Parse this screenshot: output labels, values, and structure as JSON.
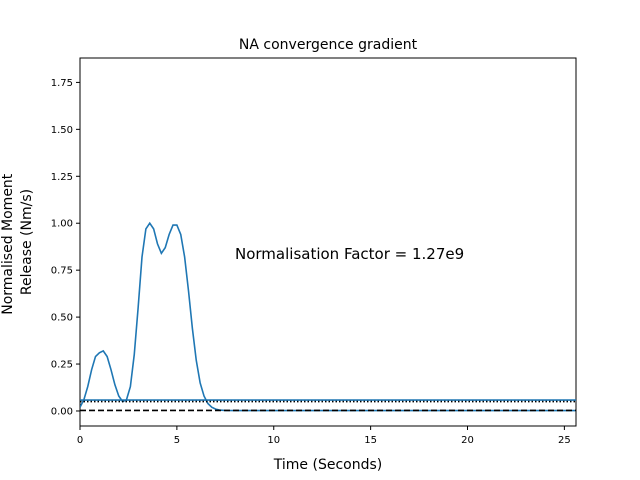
{
  "chart_data": {
    "type": "line",
    "title": "NA convergence gradient",
    "xlabel": "Time (Seconds)",
    "ylabel_lines": [
      "Normalised Moment",
      "Release (Nm/s)"
    ],
    "xlim": [
      0,
      25.6
    ],
    "ylim": [
      -0.08,
      1.88
    ],
    "x_ticks": [
      0,
      5,
      10,
      15,
      20,
      25
    ],
    "y_ticks": [
      0.0,
      0.25,
      0.5,
      0.75,
      1.0,
      1.25,
      1.5,
      1.75
    ],
    "annotation": {
      "text": "Normalisation Factor = 1.27e9",
      "x": 8.0,
      "y": 0.81
    },
    "grid": false,
    "series": [
      {
        "style": "solid",
        "color": "#1f77b4",
        "x": [
          0,
          0.2,
          0.4,
          0.6,
          0.8,
          1.0,
          1.2,
          1.4,
          1.6,
          1.8,
          2.0,
          2.2,
          2.4,
          2.6,
          2.8,
          3.0,
          3.2,
          3.4,
          3.6,
          3.8,
          4.0,
          4.2,
          4.4,
          4.6,
          4.8,
          5.0,
          5.2,
          5.4,
          5.6,
          5.8,
          6.0,
          6.2,
          6.4,
          6.6,
          6.8,
          7.0,
          7.2,
          7.5,
          8.0,
          10,
          15,
          20,
          25.6
        ],
        "y": [
          0.02,
          0.06,
          0.13,
          0.22,
          0.29,
          0.31,
          0.32,
          0.29,
          0.22,
          0.14,
          0.08,
          0.05,
          0.06,
          0.13,
          0.3,
          0.55,
          0.82,
          0.97,
          1.0,
          0.97,
          0.89,
          0.84,
          0.87,
          0.94,
          0.99,
          0.99,
          0.94,
          0.82,
          0.64,
          0.44,
          0.27,
          0.15,
          0.08,
          0.04,
          0.02,
          0.01,
          0.005,
          0.003,
          0.002,
          0.002,
          0.002,
          0.002,
          0.002
        ]
      },
      {
        "style": "solid",
        "color": "#1f77b4",
        "x": [
          0,
          25.6
        ],
        "y": [
          0.058,
          0.058
        ]
      },
      {
        "style": "dotted",
        "color": "#000000",
        "x": [
          0,
          25.6
        ],
        "y": [
          0.05,
          0.05
        ]
      },
      {
        "style": "dashed",
        "color": "#000000",
        "x": [
          0,
          25.6
        ],
        "y": [
          0.003,
          0.003
        ]
      }
    ]
  }
}
